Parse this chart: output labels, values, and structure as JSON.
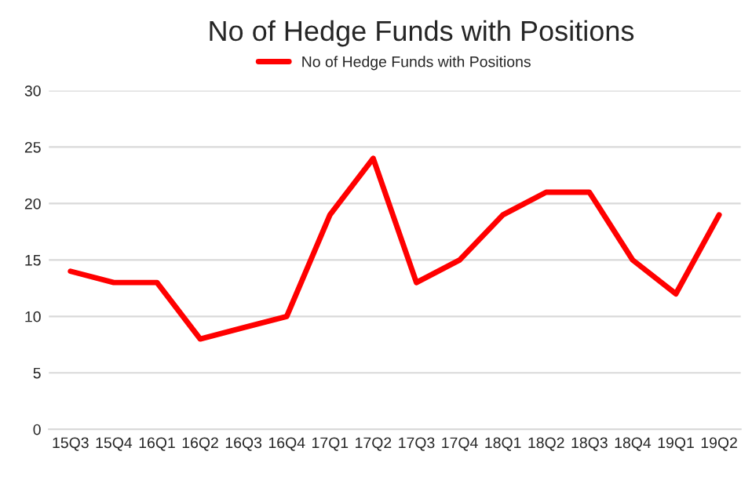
{
  "chart_data": {
    "type": "line",
    "title": "No of Hedge Funds with Positions",
    "categories": [
      "15Q3",
      "15Q4",
      "16Q1",
      "16Q2",
      "16Q3",
      "16Q4",
      "17Q1",
      "17Q2",
      "17Q3",
      "17Q4",
      "18Q1",
      "18Q2",
      "18Q3",
      "18Q4",
      "19Q1",
      "19Q2"
    ],
    "series": [
      {
        "name": "No of Hedge Funds with Positions",
        "color": "#ff0000",
        "values": [
          14,
          13,
          13,
          8,
          9,
          10,
          19,
          24,
          13,
          15,
          19,
          21,
          21,
          15,
          12,
          19
        ]
      }
    ],
    "ylim": [
      0,
      30
    ],
    "yticks": [
      0,
      5,
      10,
      15,
      20,
      25,
      30
    ],
    "grid": "y",
    "legend": "top",
    "line_style": "solid",
    "marker": "none"
  }
}
